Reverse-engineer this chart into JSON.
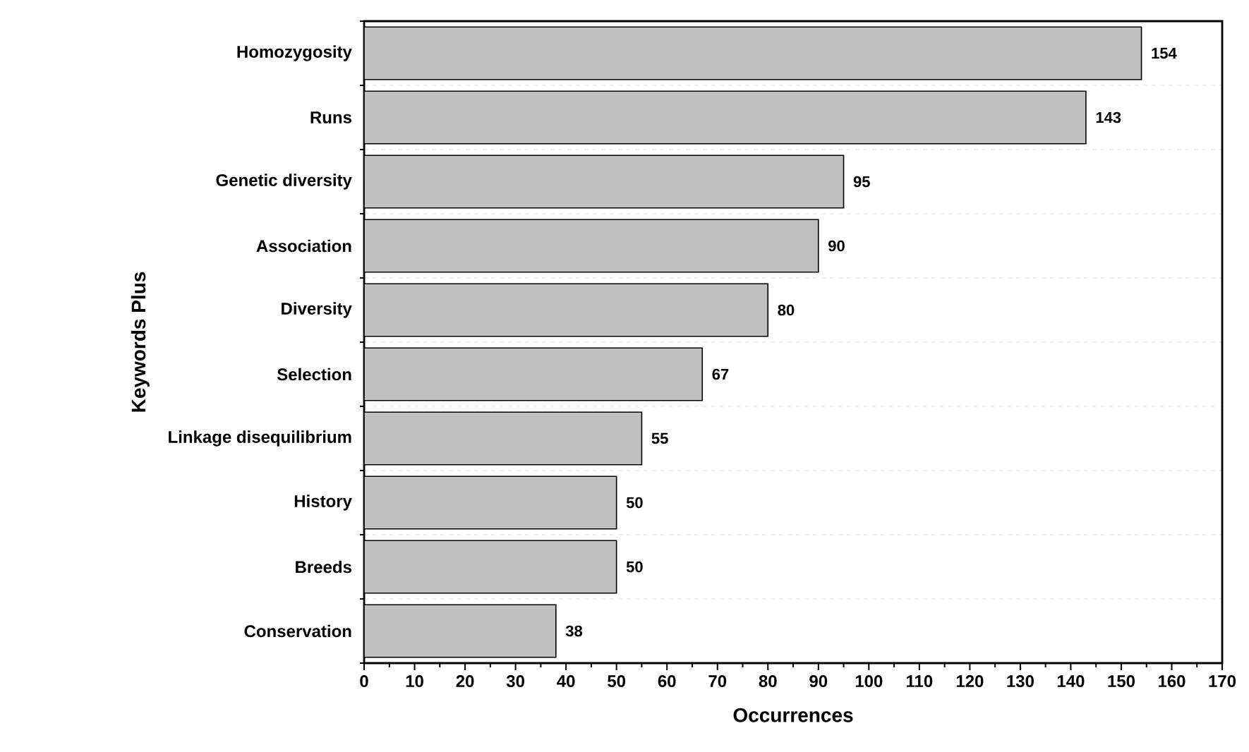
{
  "chart_data": {
    "type": "bar",
    "orientation": "horizontal",
    "xlabel": "Occurrences",
    "ylabel": "Keywords Plus",
    "categories": [
      "Homozygosity",
      "Runs",
      "Genetic diversity",
      "Association",
      "Diversity",
      "Selection",
      "Linkage disequilibrium",
      "History",
      "Breeds",
      "Conservation"
    ],
    "values": [
      154,
      143,
      95,
      90,
      80,
      67,
      55,
      50,
      50,
      38
    ],
    "color": "#c0c0c0",
    "xlim": [
      0,
      170
    ],
    "xticks": [
      0,
      10,
      20,
      30,
      40,
      50,
      60,
      70,
      80,
      90,
      100,
      110,
      120,
      130,
      140,
      150,
      160,
      170
    ],
    "data_labels": true,
    "grid": "y"
  }
}
